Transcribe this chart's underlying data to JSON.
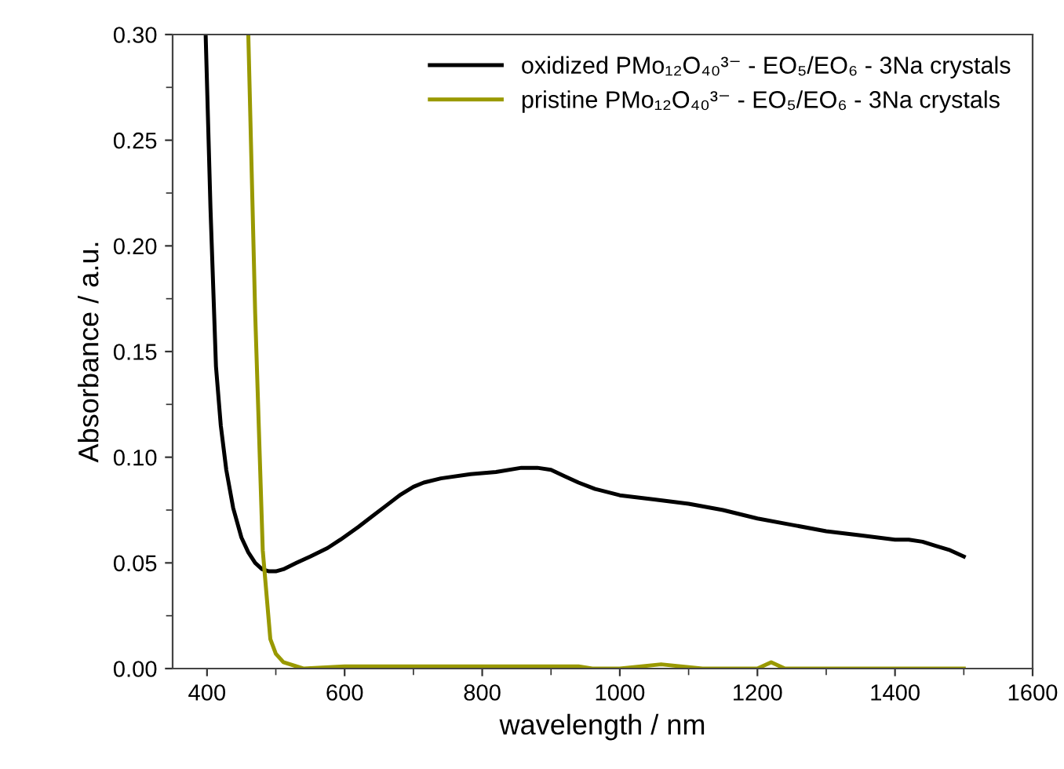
{
  "chart_data": {
    "type": "line",
    "xlabel": "wavelength / nm",
    "ylabel": "Absorbance / a.u.",
    "xlim": [
      350,
      1600
    ],
    "ylim": [
      0,
      0.3
    ],
    "xticks": [
      400,
      600,
      800,
      1000,
      1200,
      1400,
      1600
    ],
    "yticks": [
      {
        "value": 0,
        "label": "0.00"
      },
      {
        "value": 0.05,
        "label": "0.05"
      },
      {
        "value": 0.1,
        "label": "0.10"
      },
      {
        "value": 0.15,
        "label": "0.15"
      },
      {
        "value": 0.2,
        "label": "0.20"
      },
      {
        "value": 0.25,
        "label": "0.25"
      },
      {
        "value": 0.3,
        "label": "0.30"
      }
    ],
    "legend": "top right",
    "grid": false,
    "line_style": "solid",
    "marker": "none",
    "series": [
      {
        "name": "oxidized PMo₁₂O₄₀³⁻ - EO₅/EO₆ - 3Na crystals",
        "color": "#000000",
        "x": [
          398,
          405,
          413,
          420,
          428,
          438,
          450,
          460,
          470,
          480,
          490,
          500,
          511,
          530,
          550,
          575,
          594,
          620,
          640,
          660,
          680,
          700,
          715,
          740,
          783,
          820,
          857,
          880,
          900,
          920,
          940,
          964,
          1000,
          1050,
          1100,
          1150,
          1200,
          1250,
          1300,
          1350,
          1400,
          1420,
          1440,
          1460,
          1480,
          1500
        ],
        "values": [
          0.3,
          0.218,
          0.143,
          0.115,
          0.094,
          0.076,
          0.062,
          0.055,
          0.05,
          0.047,
          0.046,
          0.046,
          0.047,
          0.05,
          0.053,
          0.057,
          0.061,
          0.067,
          0.072,
          0.077,
          0.082,
          0.086,
          0.088,
          0.09,
          0.092,
          0.093,
          0.095,
          0.095,
          0.094,
          0.091,
          0.088,
          0.085,
          0.082,
          0.08,
          0.078,
          0.075,
          0.071,
          0.068,
          0.065,
          0.063,
          0.061,
          0.061,
          0.06,
          0.058,
          0.056,
          0.053
        ]
      },
      {
        "name": "pristine PMo₁₂O₄₀³⁻ - EO₅/EO₆ - 3Na crystals",
        "color": "#999900",
        "x": [
          460,
          470,
          481,
          492,
          500,
          511,
          540,
          600,
          700,
          800,
          940,
          960,
          1000,
          1060,
          1120,
          1200,
          1220,
          1240,
          1300,
          1400,
          1500
        ],
        "values": [
          0.3,
          0.168,
          0.056,
          0.014,
          0.007,
          0.003,
          0.0,
          0.001,
          0.001,
          0.001,
          0.001,
          0.0,
          0.0,
          0.002,
          0.0,
          0.0,
          0.003,
          0.0,
          0.0,
          0.0,
          0.0
        ]
      }
    ]
  }
}
